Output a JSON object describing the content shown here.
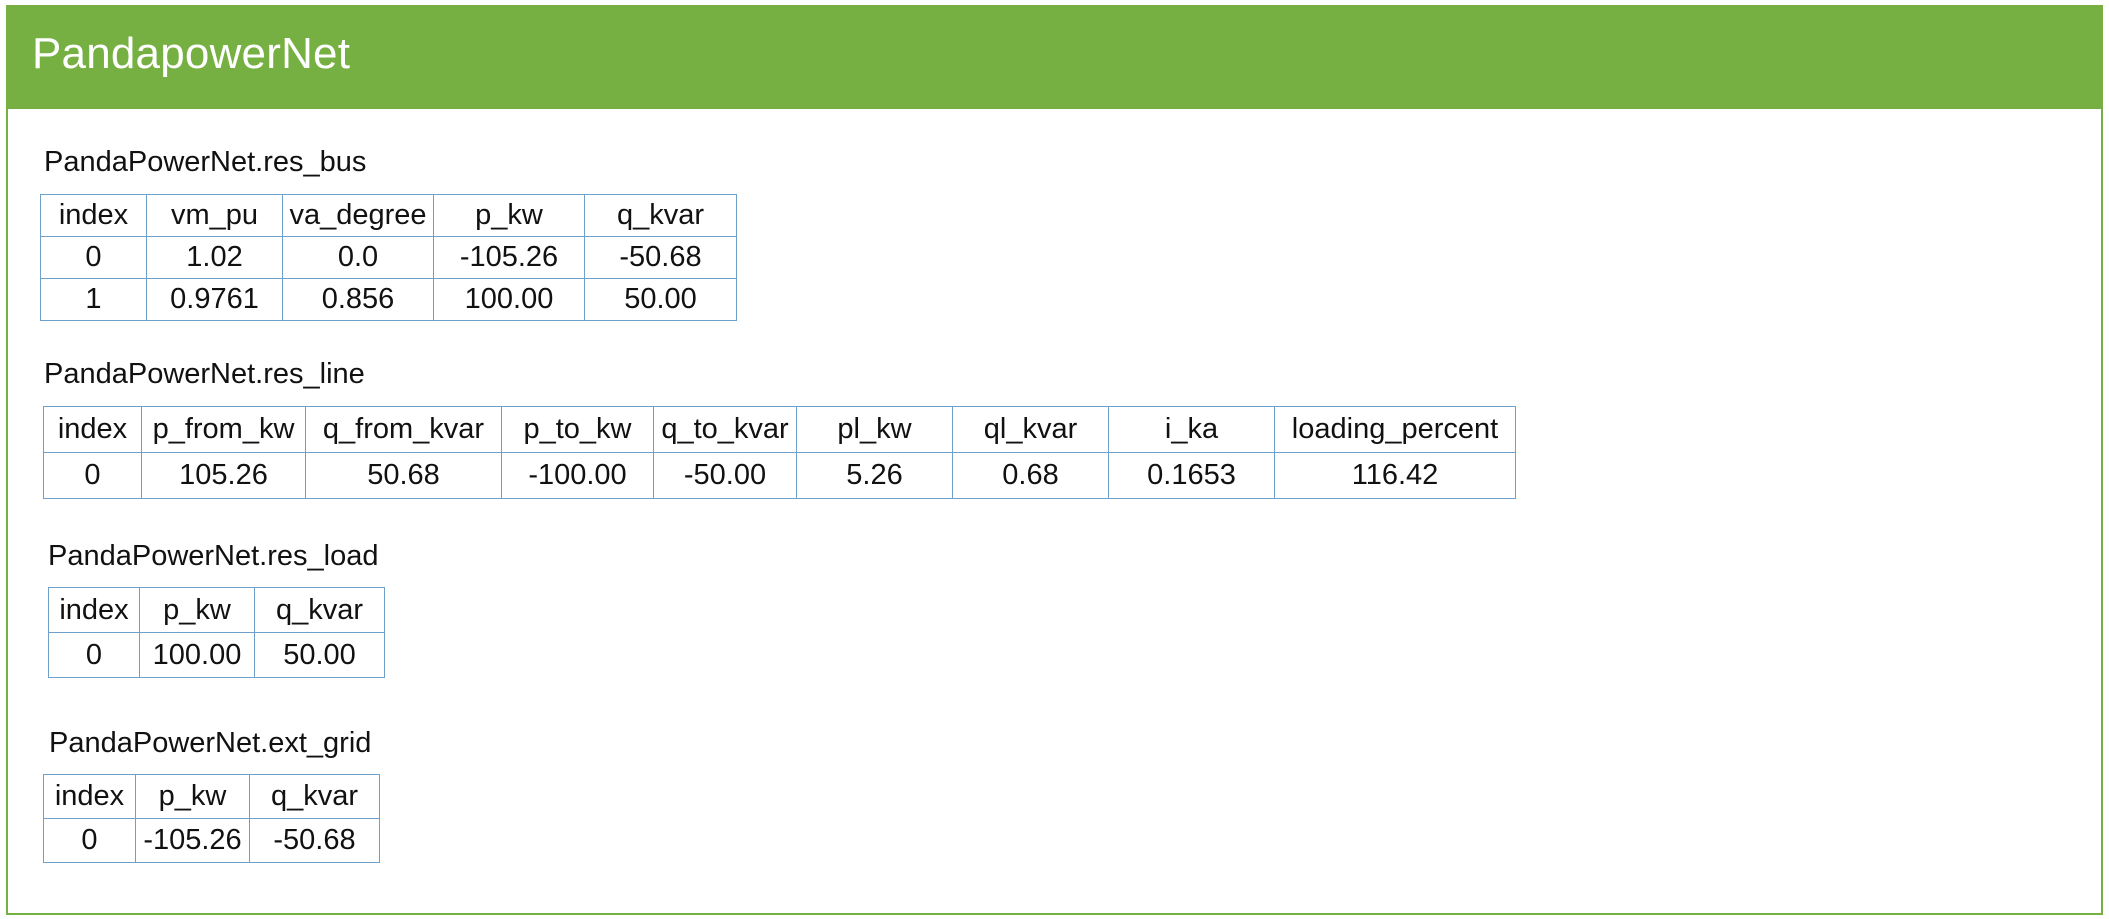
{
  "header": {
    "title": "PandapowerNet",
    "color": "#76b043"
  },
  "tables": [
    {
      "label": "PandaPowerNet.res_bus",
      "columns": [
        "index",
        "vm_pu",
        "va_degree",
        "p_kw",
        "q_kvar"
      ],
      "rows": [
        [
          "0",
          "1.02",
          "0.0",
          "-105.26",
          "-50.68"
        ],
        [
          "1",
          "0.9761",
          "0.856",
          "100.00",
          "50.00"
        ]
      ]
    },
    {
      "label": "PandaPowerNet.res_line",
      "columns": [
        "index",
        "p_from_kw",
        "q_from_kvar",
        "p_to_kw",
        "q_to_kvar",
        "pl_kw",
        "ql_kvar",
        "i_ka",
        "loading_percent"
      ],
      "rows": [
        [
          "0",
          "105.26",
          "50.68",
          "-100.00",
          "-50.00",
          "5.26",
          "0.68",
          "0.1653",
          "116.42"
        ]
      ]
    },
    {
      "label": "PandaPowerNet.res_load",
      "columns": [
        "index",
        "p_kw",
        "q_kvar"
      ],
      "rows": [
        [
          "0",
          "100.00",
          "50.00"
        ]
      ]
    },
    {
      "label": "PandaPowerNet.ext_grid",
      "columns": [
        "index",
        "p_kw",
        "q_kvar"
      ],
      "rows": [
        [
          "0",
          "-105.26",
          "-50.68"
        ]
      ]
    }
  ]
}
